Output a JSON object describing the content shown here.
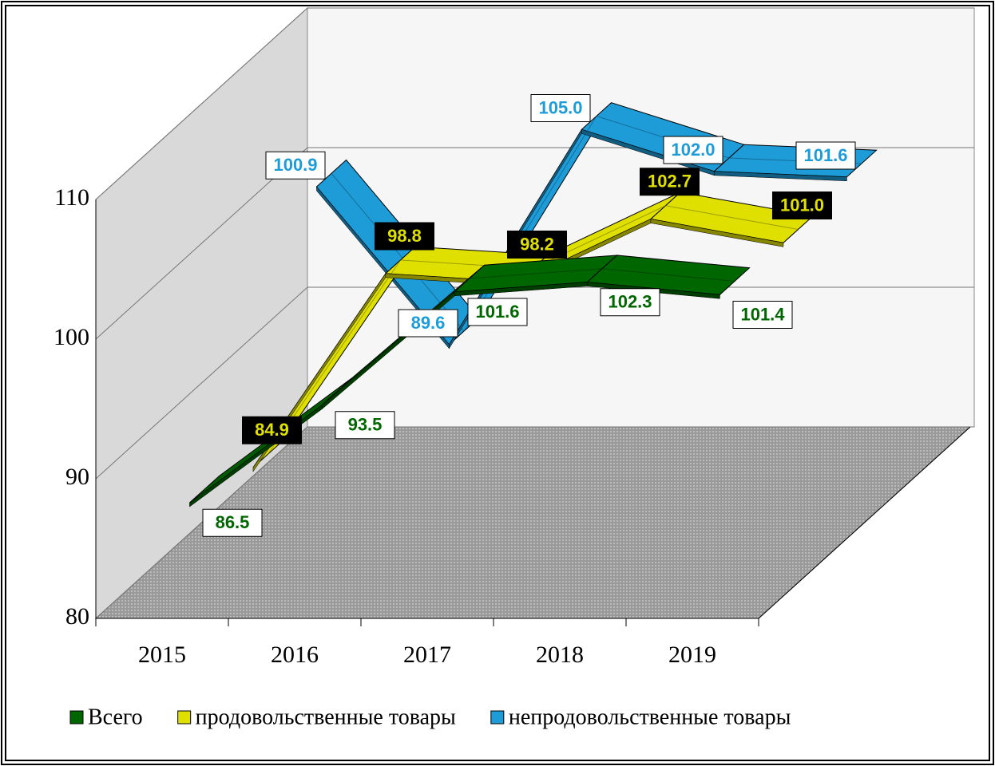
{
  "chart_data": {
    "type": "line3d",
    "categories": [
      "2015",
      "2016",
      "2017",
      "2018",
      "2019"
    ],
    "ylim": [
      80,
      110
    ],
    "yticks": [
      80,
      90,
      100,
      110
    ],
    "grid": true,
    "legend": "bottom",
    "series": [
      {
        "name": "Всего",
        "color": "#006600",
        "values": [
          86.5,
          93.5,
          101.6,
          102.3,
          101.4
        ],
        "value_labels": [
          "86.5",
          "93.5",
          "101.6",
          "102.3",
          "101.4"
        ]
      },
      {
        "name": "продовольственные товары",
        "color": "#e0e000",
        "values": [
          84.9,
          98.8,
          98.2,
          102.7,
          101.0
        ],
        "value_labels": [
          "84.9",
          "98.8",
          "98.2",
          "102.7",
          "101.0"
        ]
      },
      {
        "name": "непродовольственные товары",
        "color": "#1e9cd8",
        "values": [
          100.9,
          89.6,
          105.0,
          102.0,
          101.6
        ],
        "value_labels": [
          "100.9",
          "89.6",
          "105.0",
          "102.0",
          "101.6"
        ]
      }
    ]
  }
}
